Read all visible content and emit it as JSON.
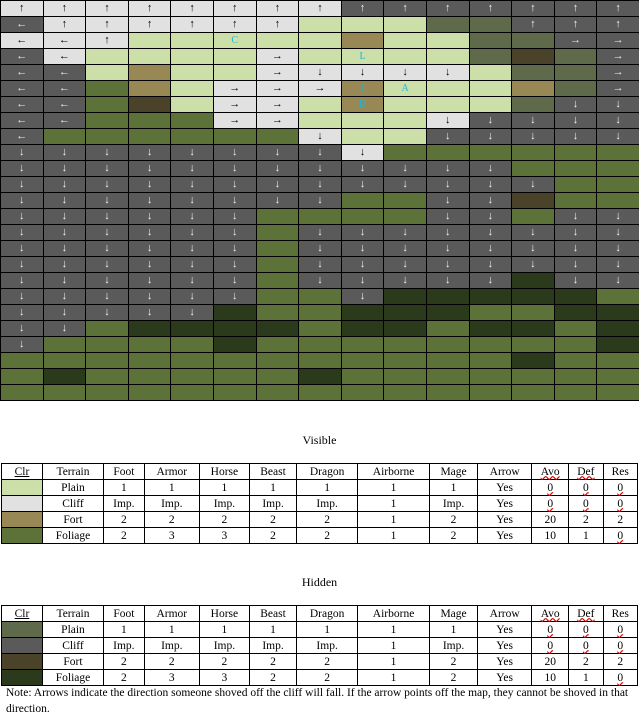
{
  "colors": {
    "P": "#cddfa8",
    "C": "#e1e1e1",
    "F": "#978856",
    "G": "#5d7238",
    "p": "#5e6a4a",
    "c": "#5a5a5a",
    "f": "#4a4229",
    "g": "#2a3a1a",
    "label_color": "#22b4d4"
  },
  "map": {
    "rows": [
      [
        "C↑",
        "C↑",
        "C↑",
        "C↑",
        "C↑",
        "C↑",
        "C↑",
        "C↑",
        "c↑",
        "c↑",
        "c↑",
        "c↑",
        "c↑",
        "c↑",
        "c↑"
      ],
      [
        "c←",
        "C↑",
        "C↑",
        "C↑",
        "C↑",
        "C↑",
        "C↑",
        "P",
        "P",
        "P",
        "p",
        "p",
        "c↑",
        "c↑",
        "c↑"
      ],
      [
        "C←",
        "C←",
        "C↑",
        "P",
        "P",
        "P C",
        "P",
        "P",
        "F",
        "P",
        "P",
        "p",
        "p",
        "c→",
        "c→"
      ],
      [
        "c←",
        "C←",
        "P",
        "P",
        "P",
        "P",
        "C→",
        "P",
        "P L",
        "P",
        "P",
        "p",
        "f",
        "p",
        "c→"
      ],
      [
        "c←",
        "c←",
        "P",
        "F",
        "P",
        "P",
        "C→",
        "C↓",
        "C↓",
        "C↓",
        "C↓",
        "P",
        "p",
        "p",
        "c→"
      ],
      [
        "c←",
        "c←",
        "G",
        "F",
        "P",
        "C→",
        "C→",
        "C→",
        "F J",
        "P A",
        "P",
        "P",
        "F",
        "p",
        "c→"
      ],
      [
        "c←",
        "c←",
        "G",
        "f",
        "P",
        "C→",
        "C→",
        "P",
        "F D",
        "P",
        "P",
        "P",
        "p",
        "c↓",
        "c↓"
      ],
      [
        "c←",
        "c←",
        "G",
        "G",
        "G",
        "C→",
        "C→",
        "P",
        "P",
        "P",
        "C↓",
        "c↓",
        "c↓",
        "c↓",
        "c↓"
      ],
      [
        "c←",
        "G",
        "G",
        "G",
        "G",
        "G",
        "G",
        "C↓",
        "P",
        "P",
        "c↓",
        "c↓",
        "c↓",
        "c↓",
        "c↓"
      ],
      [
        "c↓",
        "c↓",
        "c↓",
        "c↓",
        "c↓",
        "c↓",
        "c↓",
        "c↓",
        "C↓",
        "G",
        "G",
        "G",
        "G",
        "G",
        "G"
      ],
      [
        "c↓",
        "c↓",
        "c↓",
        "c↓",
        "c↓",
        "c↓",
        "c↓",
        "c↓",
        "c↓",
        "c↓",
        "c↓",
        "c↓",
        "G",
        "G",
        "G"
      ],
      [
        "c↓",
        "c↓",
        "c↓",
        "c↓",
        "c↓",
        "c↓",
        "c↓",
        "c↓",
        "c↓",
        "c↓",
        "c↓",
        "c↓",
        "c↓",
        "G",
        "G"
      ],
      [
        "c↓",
        "c↓",
        "c↓",
        "c↓",
        "c↓",
        "c↓",
        "c↓",
        "c↓",
        "G",
        "G",
        "c↓",
        "c↓",
        "f",
        "G",
        "G"
      ],
      [
        "c↓",
        "c↓",
        "c↓",
        "c↓",
        "c↓",
        "c↓",
        "G",
        "G",
        "G",
        "G",
        "c↓",
        "c↓",
        "G",
        "c↓",
        "c↓"
      ],
      [
        "c↓",
        "c↓",
        "c↓",
        "c↓",
        "c↓",
        "c↓",
        "G",
        "c↓",
        "c↓",
        "c↓",
        "c↓",
        "c↓",
        "c↓",
        "c↓",
        "c↓"
      ],
      [
        "c↓",
        "c↓",
        "c↓",
        "c↓",
        "c↓",
        "c↓",
        "G",
        "c↓",
        "c↓",
        "c↓",
        "c↓",
        "c↓",
        "c↓",
        "c↓",
        "c↓"
      ],
      [
        "c↓",
        "c↓",
        "c↓",
        "c↓",
        "c↓",
        "c↓",
        "G",
        "c↓",
        "c↓",
        "c↓",
        "c↓",
        "c↓",
        "c↓",
        "c↓",
        "c↓"
      ],
      [
        "c↓",
        "c↓",
        "c↓",
        "c↓",
        "c↓",
        "c↓",
        "G",
        "c↓",
        "c↓",
        "c↓",
        "c↓",
        "c↓",
        "g",
        "c↓",
        "c↓"
      ],
      [
        "c↓",
        "c↓",
        "c↓",
        "c↓",
        "c↓",
        "c↓",
        "G",
        "G",
        "c↓",
        "g",
        "g",
        "g",
        "g",
        "g",
        "G"
      ],
      [
        "c↓",
        "c↓",
        "c↓",
        "c↓",
        "c↓",
        "g",
        "G",
        "G",
        "g",
        "g",
        "g",
        "G",
        "G",
        "g",
        "g"
      ],
      [
        "c↓",
        "c↓",
        "G",
        "g",
        "g",
        "g",
        "g",
        "G",
        "g",
        "g",
        "G",
        "g",
        "g",
        "G",
        "g"
      ],
      [
        "c↓",
        "G",
        "G",
        "G",
        "G",
        "g",
        "G",
        "G",
        "G",
        "G",
        "G",
        "G",
        "G",
        "G",
        "g"
      ],
      [
        "G",
        "G",
        "G",
        "G",
        "G",
        "G",
        "G",
        "G",
        "G",
        "G",
        "G",
        "G",
        "g",
        "G",
        "G"
      ],
      [
        "G",
        "g",
        "G",
        "G",
        "G",
        "G",
        "G",
        "g",
        "G",
        "G",
        "G",
        "G",
        "G",
        "G",
        "G"
      ],
      [
        "G",
        "G",
        "G",
        "G",
        "G",
        "G",
        "G",
        "G",
        "G",
        "G",
        "G",
        "G",
        "G",
        "G",
        "G"
      ]
    ]
  },
  "headers": [
    "Clr",
    "Terrain",
    "Foot",
    "Armor",
    "Horse",
    "Beast",
    "Dragon",
    "Airborne",
    "Mage",
    "Arrow",
    "Avo",
    "Def",
    "Res"
  ],
  "visible": {
    "title": "Visible",
    "rows": [
      {
        "swatch": "P",
        "cells": [
          "Plain",
          "1",
          "1",
          "1",
          "1",
          "1",
          "1",
          "1",
          "Yes",
          "0",
          "0",
          "0"
        ]
      },
      {
        "swatch": "C",
        "cells": [
          "Cliff",
          "Imp.",
          "Imp.",
          "Imp.",
          "Imp.",
          "Imp.",
          "1",
          "Imp.",
          "Yes",
          "0",
          "0",
          "0"
        ]
      },
      {
        "swatch": "F",
        "cells": [
          "Fort",
          "2",
          "2",
          "2",
          "2",
          "2",
          "1",
          "2",
          "Yes",
          "20",
          "2",
          "2"
        ]
      },
      {
        "swatch": "G",
        "cells": [
          "Foliage",
          "2",
          "3",
          "3",
          "2",
          "2",
          "1",
          "2",
          "Yes",
          "10",
          "1",
          "0"
        ]
      }
    ]
  },
  "hidden": {
    "title": "Hidden",
    "rows": [
      {
        "swatch": "p",
        "cells": [
          "Plain",
          "1",
          "1",
          "1",
          "1",
          "1",
          "1",
          "1",
          "Yes",
          "0",
          "0",
          "0"
        ]
      },
      {
        "swatch": "c",
        "cells": [
          "Cliff",
          "Imp.",
          "Imp.",
          "Imp.",
          "Imp.",
          "Imp.",
          "1",
          "Imp.",
          "Yes",
          "0",
          "0",
          "0"
        ]
      },
      {
        "swatch": "f",
        "cells": [
          "Fort",
          "2",
          "2",
          "2",
          "2",
          "2",
          "1",
          "2",
          "Yes",
          "20",
          "2",
          "2"
        ]
      },
      {
        "swatch": "g",
        "cells": [
          "Foliage",
          "2",
          "3",
          "3",
          "2",
          "2",
          "1",
          "2",
          "Yes",
          "10",
          "1",
          "0"
        ]
      }
    ]
  },
  "note": "Note: Arrows indicate the direction someone shoved off the cliff will fall. If the arrow points off the map, they cannot be shoved in that direction."
}
